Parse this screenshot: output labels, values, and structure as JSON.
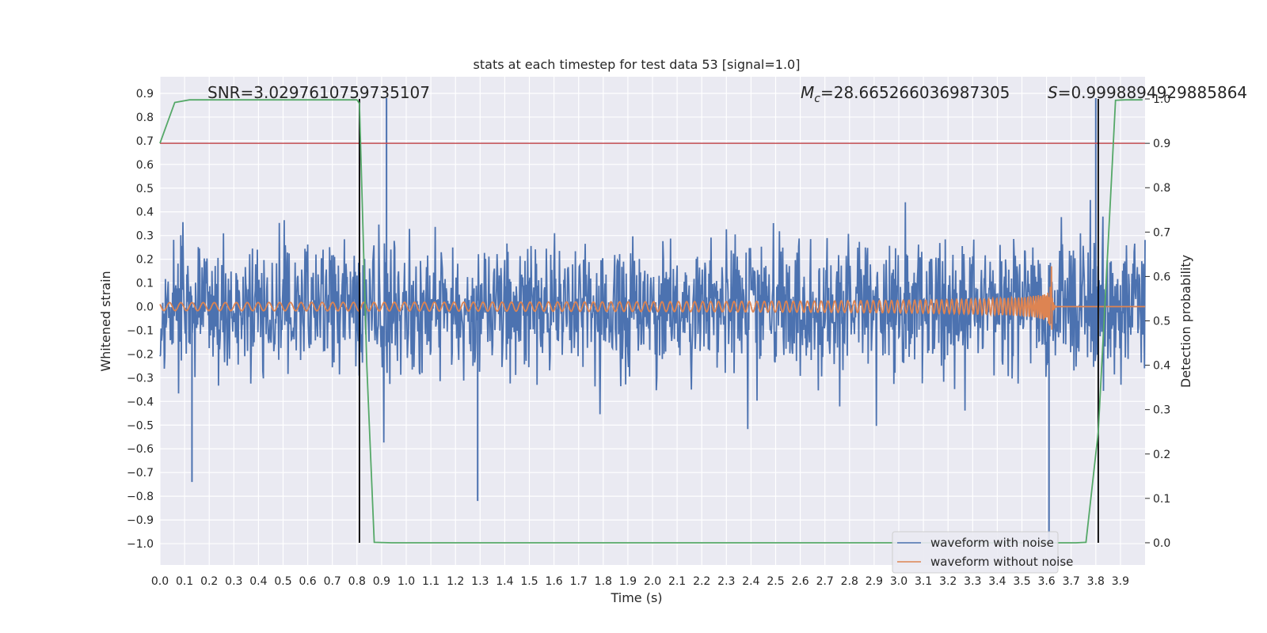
{
  "chart_data": {
    "type": "line",
    "title": "stats at each timestep for test data 53 [signal=1.0]",
    "xlabel": "Time (s)",
    "ylabel": "Whitened strain",
    "y2label": "Detection probability",
    "xlim": [
      0.0,
      4.0
    ],
    "ylim": [
      -1.09,
      0.97
    ],
    "y2lim": [
      -0.05,
      1.05
    ],
    "x_ticks": [
      "0.0",
      "0.1",
      "0.2",
      "0.3",
      "0.4",
      "0.5",
      "0.6",
      "0.7",
      "0.8",
      "0.9",
      "1.0",
      "1.1",
      "1.2",
      "1.3",
      "1.4",
      "1.5",
      "1.6",
      "1.7",
      "1.8",
      "1.9",
      "2.0",
      "2.1",
      "2.2",
      "2.3",
      "2.4",
      "2.5",
      "2.6",
      "2.7",
      "2.8",
      "2.9",
      "3.0",
      "3.1",
      "3.2",
      "3.3",
      "3.4",
      "3.5",
      "3.6",
      "3.7",
      "3.8",
      "3.9"
    ],
    "y_ticks": [
      "0.9",
      "0.8",
      "0.7",
      "0.6",
      "0.5",
      "0.4",
      "0.3",
      "0.2",
      "0.1",
      "0.0",
      "−0.1",
      "−0.2",
      "−0.3",
      "−0.4",
      "−0.5",
      "−0.6",
      "−0.7",
      "−0.8",
      "−0.9",
      "−1.0"
    ],
    "y2_ticks": [
      "1.0",
      "0.9",
      "0.8",
      "0.7",
      "0.6",
      "0.5",
      "0.4",
      "0.3",
      "0.2",
      "0.1",
      "0.0"
    ],
    "grid": true,
    "legend_position": "lower-right",
    "annotations": {
      "snr": "SNR=3.0297610759735107",
      "mc_symbol": "M",
      "mc_subscript": "c",
      "mc_value": "=28.665266036987305",
      "s_symbol": "S",
      "s_value": "=0.9998894929885864"
    },
    "threshold_y2": 0.9,
    "vertical_markers_x": [
      0.81,
      3.81
    ],
    "series": [
      {
        "name": "waveform with noise",
        "color": "#4c72b0",
        "amplitude_range": [
          -1.0,
          0.88
        ],
        "outliers": [
          [
            0.92,
            0.88
          ],
          [
            3.61,
            -1.0
          ],
          [
            3.8,
            0.88
          ],
          [
            1.29,
            -0.82
          ],
          [
            0.13,
            -0.74
          ]
        ]
      },
      {
        "name": "waveform without noise",
        "color": "#dd8452",
        "chirp_peak_x": 3.62,
        "chirp_peak_amplitude": 0.17
      },
      {
        "color": "#55a868",
        "axis": "right",
        "x": [
          0.0,
          0.06,
          0.12,
          0.2,
          0.4,
          0.6,
          0.8,
          0.81,
          0.84,
          0.87,
          0.94,
          1.2,
          2.0,
          3.0,
          3.5,
          3.72,
          3.76,
          3.81,
          3.86,
          3.88,
          3.92,
          3.99
        ],
        "values": [
          0.9,
          0.992,
          0.998,
          0.998,
          0.998,
          0.998,
          0.998,
          0.99,
          0.4,
          0.001,
          0.0,
          0.0,
          0.0,
          0.0,
          0.0,
          0.0,
          0.001,
          0.25,
          0.78,
          0.997,
          0.998,
          0.998
        ]
      }
    ],
    "colors": {
      "plot_background": "#eaeaf2",
      "grid": "#ffffff",
      "threshold": "#c44e52",
      "marker": "#000000"
    }
  }
}
